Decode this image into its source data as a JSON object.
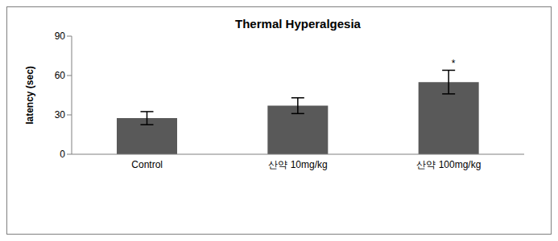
{
  "chart_data": {
    "type": "bar",
    "title": "Thermal Hyperalgesia",
    "y_label": "latency (sec)",
    "categories": [
      "Control",
      "산약 10mg/kg",
      "산약 100mg/kg"
    ],
    "values": [
      27.5,
      37,
      55
    ],
    "errors": [
      5,
      6,
      9
    ],
    "annotations": [
      null,
      null,
      "*"
    ],
    "color": "#595959",
    "ylim": [
      0,
      90
    ],
    "yticks": [
      0,
      30,
      60,
      90
    ],
    "grid": false
  }
}
